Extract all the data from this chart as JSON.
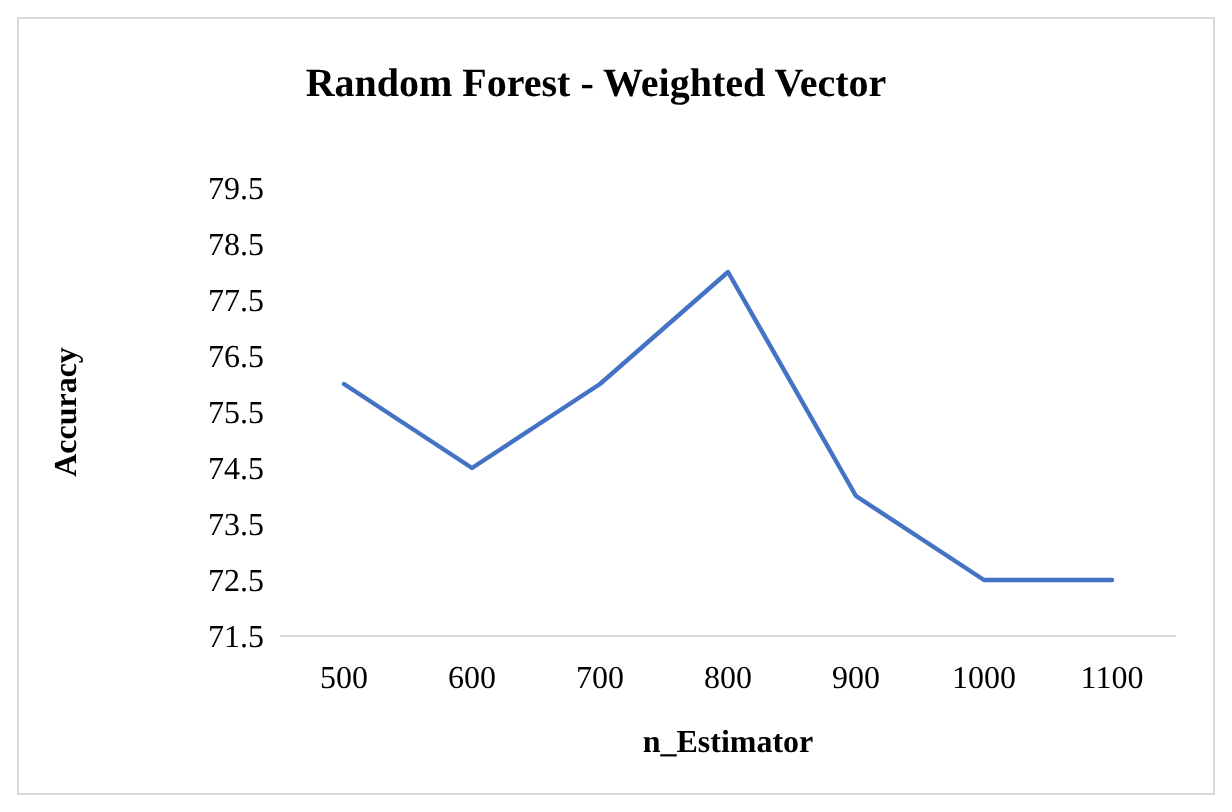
{
  "chart_data": {
    "type": "line",
    "title": "Random Forest - Weighted Vector",
    "xlabel": "n_Estimator",
    "ylabel": "Accuracy",
    "categories": [
      "500",
      "600",
      "700",
      "800",
      "900",
      "1000",
      "1100"
    ],
    "series": [
      {
        "color": "#4472c4",
        "values": [
          76,
          74.5,
          76,
          78,
          74,
          72.5,
          72.5
        ]
      }
    ],
    "ylim": [
      71.5,
      79.5
    ],
    "yticks": [
      71.5,
      72.5,
      73.5,
      74.5,
      75.5,
      76.5,
      77.5,
      78.5,
      79.5
    ],
    "grid": false,
    "marker": "none",
    "line_style": "solid"
  }
}
